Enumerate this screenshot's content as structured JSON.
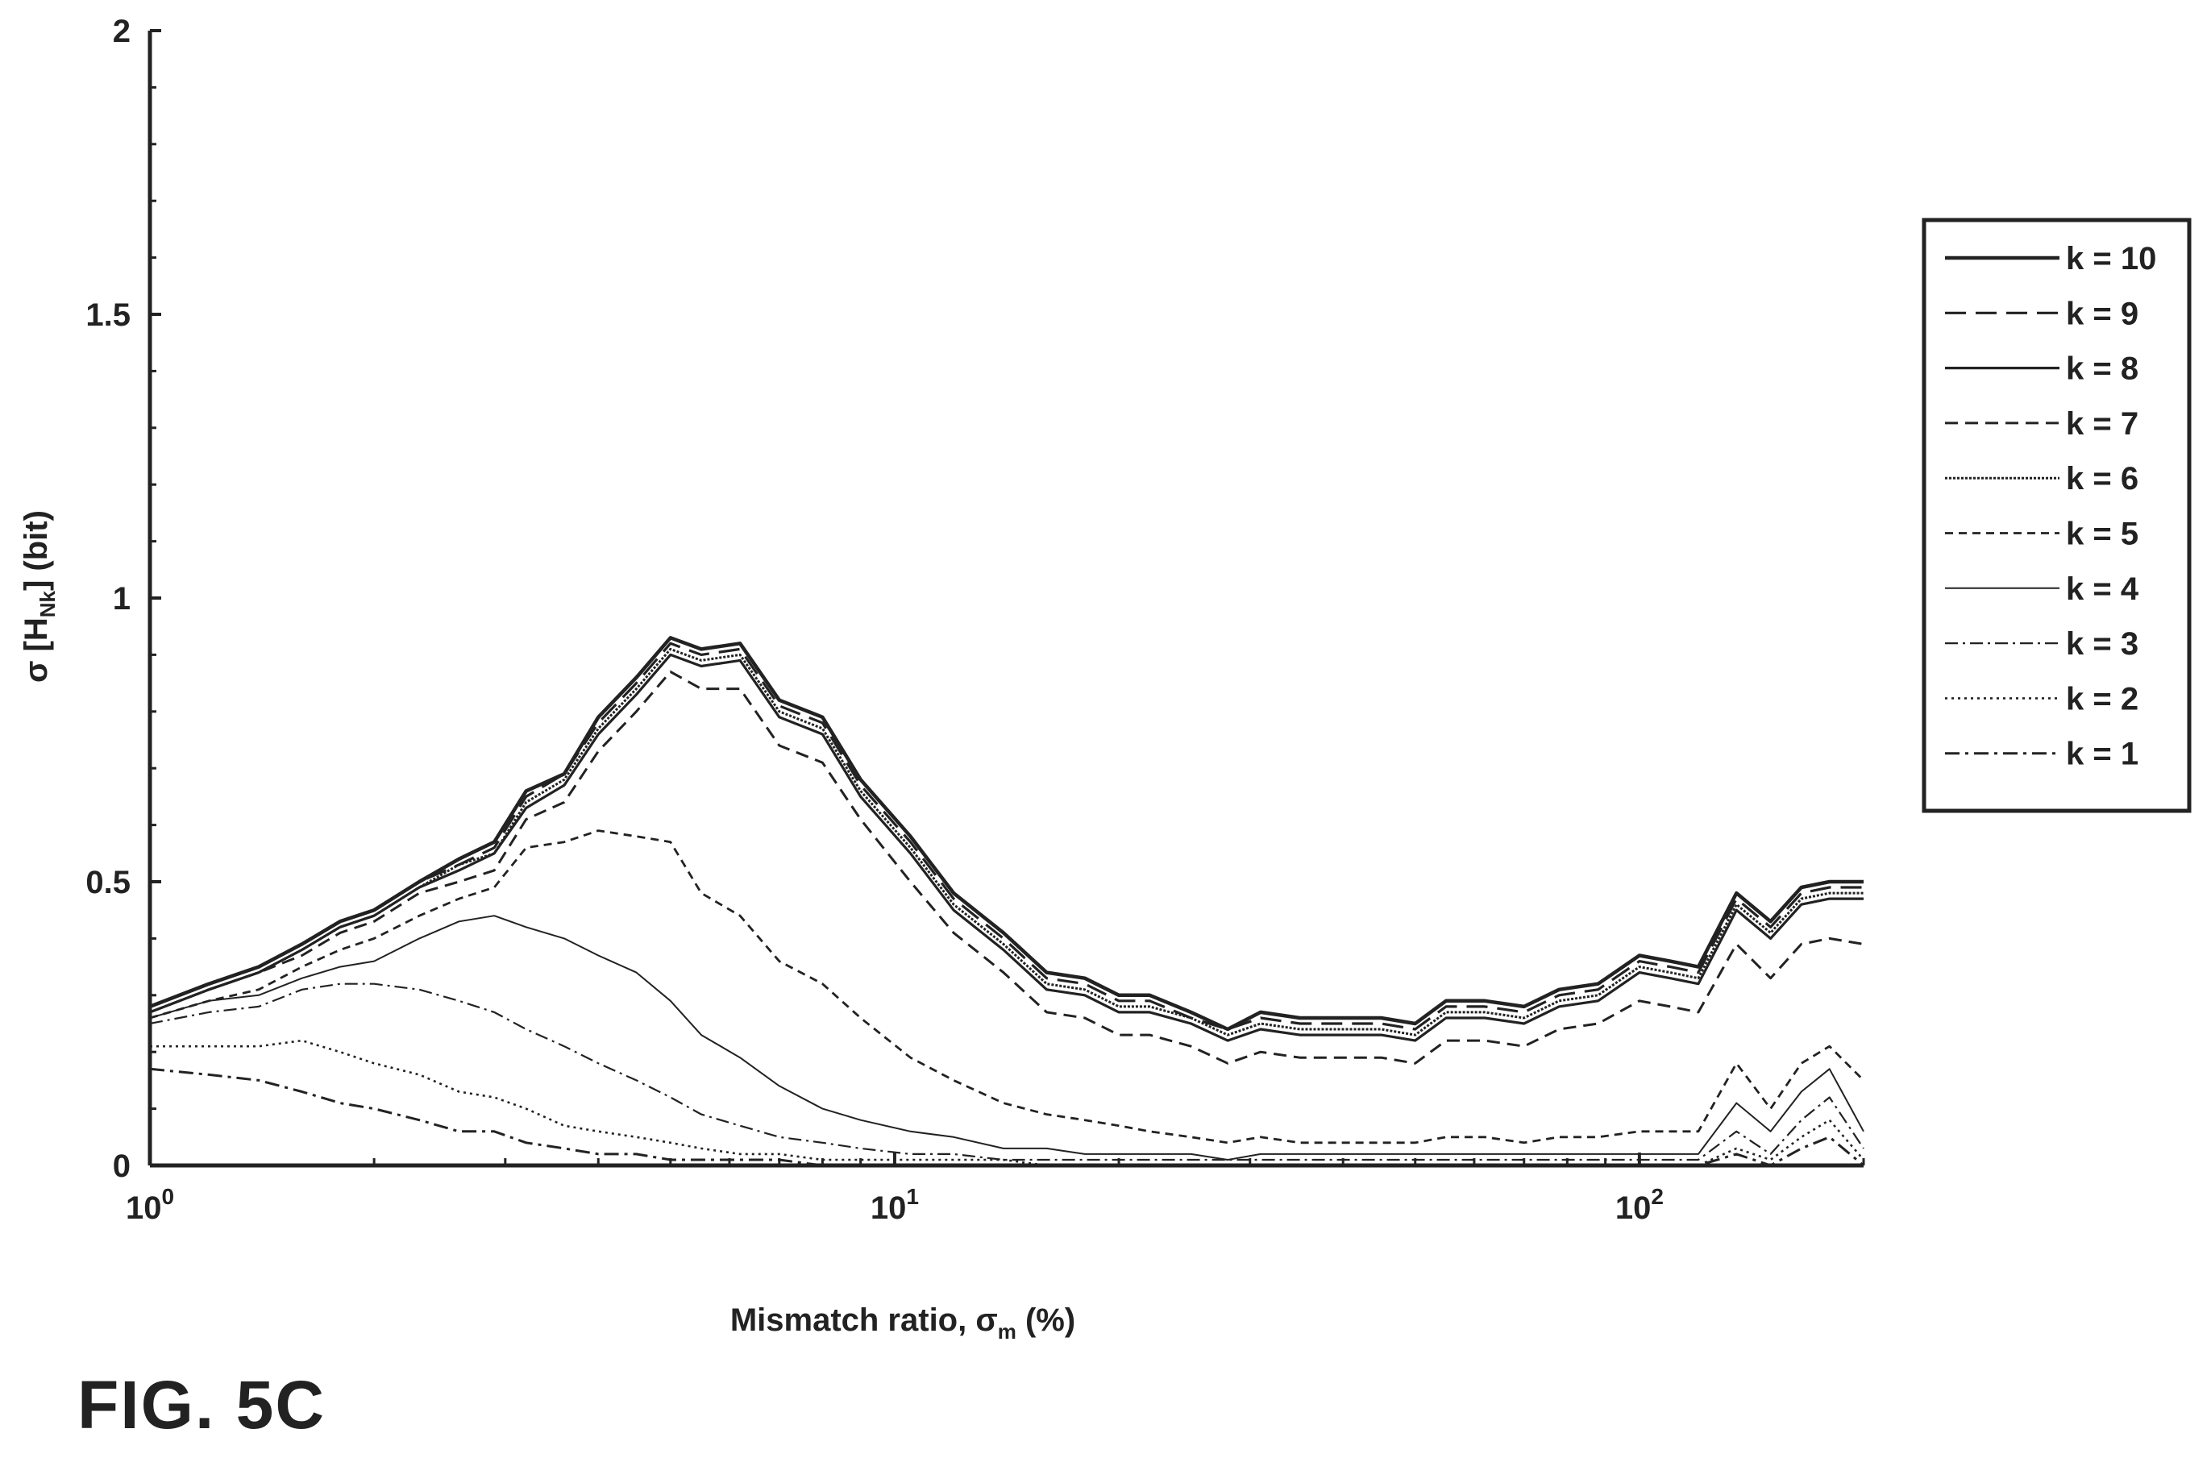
{
  "figure_label": "FIG. 5C",
  "colors": {
    "axis": "#222222",
    "series": "#222222",
    "background": "#ffffff"
  },
  "chart_data": {
    "type": "line",
    "xscale": "log",
    "xlabel": "Mismatch ratio, σm (%)",
    "ylabel": "σ [HNk] (bit)",
    "xlim": [
      1,
      200
    ],
    "ylim": [
      0,
      2
    ],
    "x_tick_labels": [
      {
        "base": "10",
        "exp": "0"
      },
      {
        "base": "10",
        "exp": "1"
      },
      {
        "base": "10",
        "exp": "2"
      }
    ],
    "y_tick_labels": [
      "0",
      "0.5",
      "1",
      "1.5",
      "2"
    ],
    "legend_position": "right",
    "grid": false,
    "x": [
      1.0,
      1.2,
      1.4,
      1.6,
      1.8,
      2.0,
      2.3,
      2.6,
      2.9,
      3.2,
      3.6,
      4.0,
      4.5,
      5.0,
      5.5,
      6.2,
      7.0,
      8.0,
      9.0,
      10.5,
      12.0,
      14.0,
      16.0,
      18.0,
      20.0,
      22.0,
      25.0,
      28.0,
      31.0,
      35.0,
      40.0,
      45.0,
      50.0,
      55.0,
      62.0,
      70.0,
      78.0,
      88.0,
      100.0,
      110.0,
      120.0,
      135.0,
      150.0,
      165.0,
      180.0,
      200.0
    ],
    "series": [
      {
        "name": "k = 10",
        "style": "solid-thick",
        "values": [
          0.28,
          0.32,
          0.35,
          0.39,
          0.43,
          0.45,
          0.5,
          0.54,
          0.57,
          0.66,
          0.69,
          0.79,
          0.86,
          0.93,
          0.91,
          0.92,
          0.82,
          0.79,
          0.68,
          0.58,
          0.48,
          0.41,
          0.34,
          0.33,
          0.3,
          0.3,
          0.27,
          0.24,
          0.27,
          0.26,
          0.26,
          0.26,
          0.25,
          0.29,
          0.29,
          0.28,
          0.31,
          0.32,
          0.37,
          0.36,
          0.35,
          0.48,
          0.43,
          0.49,
          0.5,
          0.5
        ]
      },
      {
        "name": "k = 9",
        "style": "longdash",
        "values": [
          0.28,
          0.32,
          0.35,
          0.39,
          0.43,
          0.45,
          0.5,
          0.53,
          0.56,
          0.65,
          0.69,
          0.78,
          0.85,
          0.92,
          0.9,
          0.91,
          0.81,
          0.78,
          0.67,
          0.57,
          0.47,
          0.4,
          0.33,
          0.32,
          0.29,
          0.29,
          0.26,
          0.24,
          0.26,
          0.25,
          0.25,
          0.25,
          0.24,
          0.28,
          0.28,
          0.27,
          0.3,
          0.31,
          0.36,
          0.35,
          0.34,
          0.47,
          0.42,
          0.48,
          0.49,
          0.49
        ]
      },
      {
        "name": "k = 8",
        "style": "solid",
        "values": [
          0.27,
          0.31,
          0.34,
          0.38,
          0.42,
          0.44,
          0.49,
          0.52,
          0.55,
          0.63,
          0.67,
          0.76,
          0.83,
          0.9,
          0.88,
          0.89,
          0.79,
          0.76,
          0.65,
          0.55,
          0.45,
          0.38,
          0.31,
          0.3,
          0.27,
          0.27,
          0.25,
          0.22,
          0.24,
          0.23,
          0.23,
          0.23,
          0.22,
          0.26,
          0.26,
          0.25,
          0.28,
          0.29,
          0.34,
          0.33,
          0.32,
          0.45,
          0.4,
          0.46,
          0.47,
          0.47
        ]
      },
      {
        "name": "k = 7",
        "style": "dash",
        "values": [
          0.27,
          0.31,
          0.34,
          0.37,
          0.41,
          0.43,
          0.48,
          0.5,
          0.52,
          0.61,
          0.64,
          0.73,
          0.8,
          0.87,
          0.84,
          0.84,
          0.74,
          0.71,
          0.61,
          0.5,
          0.41,
          0.34,
          0.27,
          0.26,
          0.23,
          0.23,
          0.21,
          0.18,
          0.2,
          0.19,
          0.19,
          0.19,
          0.18,
          0.22,
          0.22,
          0.21,
          0.24,
          0.25,
          0.29,
          0.28,
          0.27,
          0.39,
          0.33,
          0.39,
          0.4,
          0.39
        ]
      },
      {
        "name": "k = 6",
        "style": "dotted-dense",
        "values": [
          0.27,
          0.31,
          0.34,
          0.38,
          0.42,
          0.44,
          0.49,
          0.53,
          0.55,
          0.64,
          0.68,
          0.77,
          0.84,
          0.91,
          0.89,
          0.9,
          0.8,
          0.77,
          0.66,
          0.56,
          0.46,
          0.39,
          0.32,
          0.31,
          0.28,
          0.28,
          0.26,
          0.23,
          0.25,
          0.24,
          0.24,
          0.24,
          0.23,
          0.27,
          0.27,
          0.26,
          0.29,
          0.3,
          0.35,
          0.34,
          0.33,
          0.46,
          0.41,
          0.47,
          0.48,
          0.48
        ]
      },
      {
        "name": "k = 5",
        "style": "shortdash",
        "values": [
          0.26,
          0.29,
          0.31,
          0.35,
          0.38,
          0.4,
          0.44,
          0.47,
          0.49,
          0.56,
          0.57,
          0.59,
          0.58,
          0.57,
          0.48,
          0.44,
          0.36,
          0.32,
          0.26,
          0.19,
          0.15,
          0.11,
          0.09,
          0.08,
          0.07,
          0.06,
          0.05,
          0.04,
          0.05,
          0.04,
          0.04,
          0.04,
          0.04,
          0.05,
          0.05,
          0.04,
          0.05,
          0.05,
          0.06,
          0.06,
          0.06,
          0.18,
          0.1,
          0.18,
          0.21,
          0.15
        ]
      },
      {
        "name": "k = 4",
        "style": "solid-thin",
        "values": [
          0.26,
          0.29,
          0.3,
          0.33,
          0.35,
          0.36,
          0.4,
          0.43,
          0.44,
          0.42,
          0.4,
          0.37,
          0.34,
          0.29,
          0.23,
          0.19,
          0.14,
          0.1,
          0.08,
          0.06,
          0.05,
          0.03,
          0.03,
          0.02,
          0.02,
          0.02,
          0.02,
          0.01,
          0.02,
          0.02,
          0.02,
          0.02,
          0.02,
          0.02,
          0.02,
          0.02,
          0.02,
          0.02,
          0.02,
          0.02,
          0.02,
          0.11,
          0.06,
          0.13,
          0.17,
          0.06
        ]
      },
      {
        "name": "k = 3",
        "style": "dashdot-thin",
        "values": [
          0.25,
          0.27,
          0.28,
          0.31,
          0.32,
          0.32,
          0.31,
          0.29,
          0.27,
          0.24,
          0.21,
          0.18,
          0.15,
          0.12,
          0.09,
          0.07,
          0.05,
          0.04,
          0.03,
          0.02,
          0.02,
          0.01,
          0.01,
          0.01,
          0.01,
          0.01,
          0.01,
          0.01,
          0.01,
          0.01,
          0.01,
          0.01,
          0.01,
          0.01,
          0.01,
          0.01,
          0.01,
          0.01,
          0.01,
          0.01,
          0.01,
          0.06,
          0.02,
          0.08,
          0.12,
          0.03
        ]
      },
      {
        "name": "k = 2",
        "style": "dotted",
        "values": [
          0.21,
          0.21,
          0.21,
          0.22,
          0.2,
          0.18,
          0.16,
          0.13,
          0.12,
          0.1,
          0.07,
          0.06,
          0.05,
          0.04,
          0.03,
          0.02,
          0.02,
          0.01,
          0.01,
          0.01,
          0.01,
          0.01,
          0.0,
          0.0,
          0.0,
          0.0,
          0.0,
          0.0,
          0.0,
          0.0,
          0.0,
          0.0,
          0.0,
          0.0,
          0.0,
          0.0,
          0.0,
          0.0,
          0.0,
          0.0,
          0.0,
          0.03,
          0.01,
          0.05,
          0.08,
          0.01
        ]
      },
      {
        "name": "k = 1",
        "style": "dashdot",
        "values": [
          0.17,
          0.16,
          0.15,
          0.13,
          0.11,
          0.1,
          0.08,
          0.06,
          0.06,
          0.04,
          0.03,
          0.02,
          0.02,
          0.01,
          0.01,
          0.01,
          0.01,
          0.0,
          0.0,
          0.0,
          0.0,
          0.0,
          0.0,
          0.0,
          0.0,
          0.0,
          0.0,
          0.0,
          0.0,
          0.0,
          0.0,
          0.0,
          0.0,
          0.0,
          0.0,
          0.0,
          0.0,
          0.0,
          0.0,
          0.0,
          0.0,
          0.02,
          0.0,
          0.03,
          0.05,
          0.0
        ]
      }
    ]
  }
}
